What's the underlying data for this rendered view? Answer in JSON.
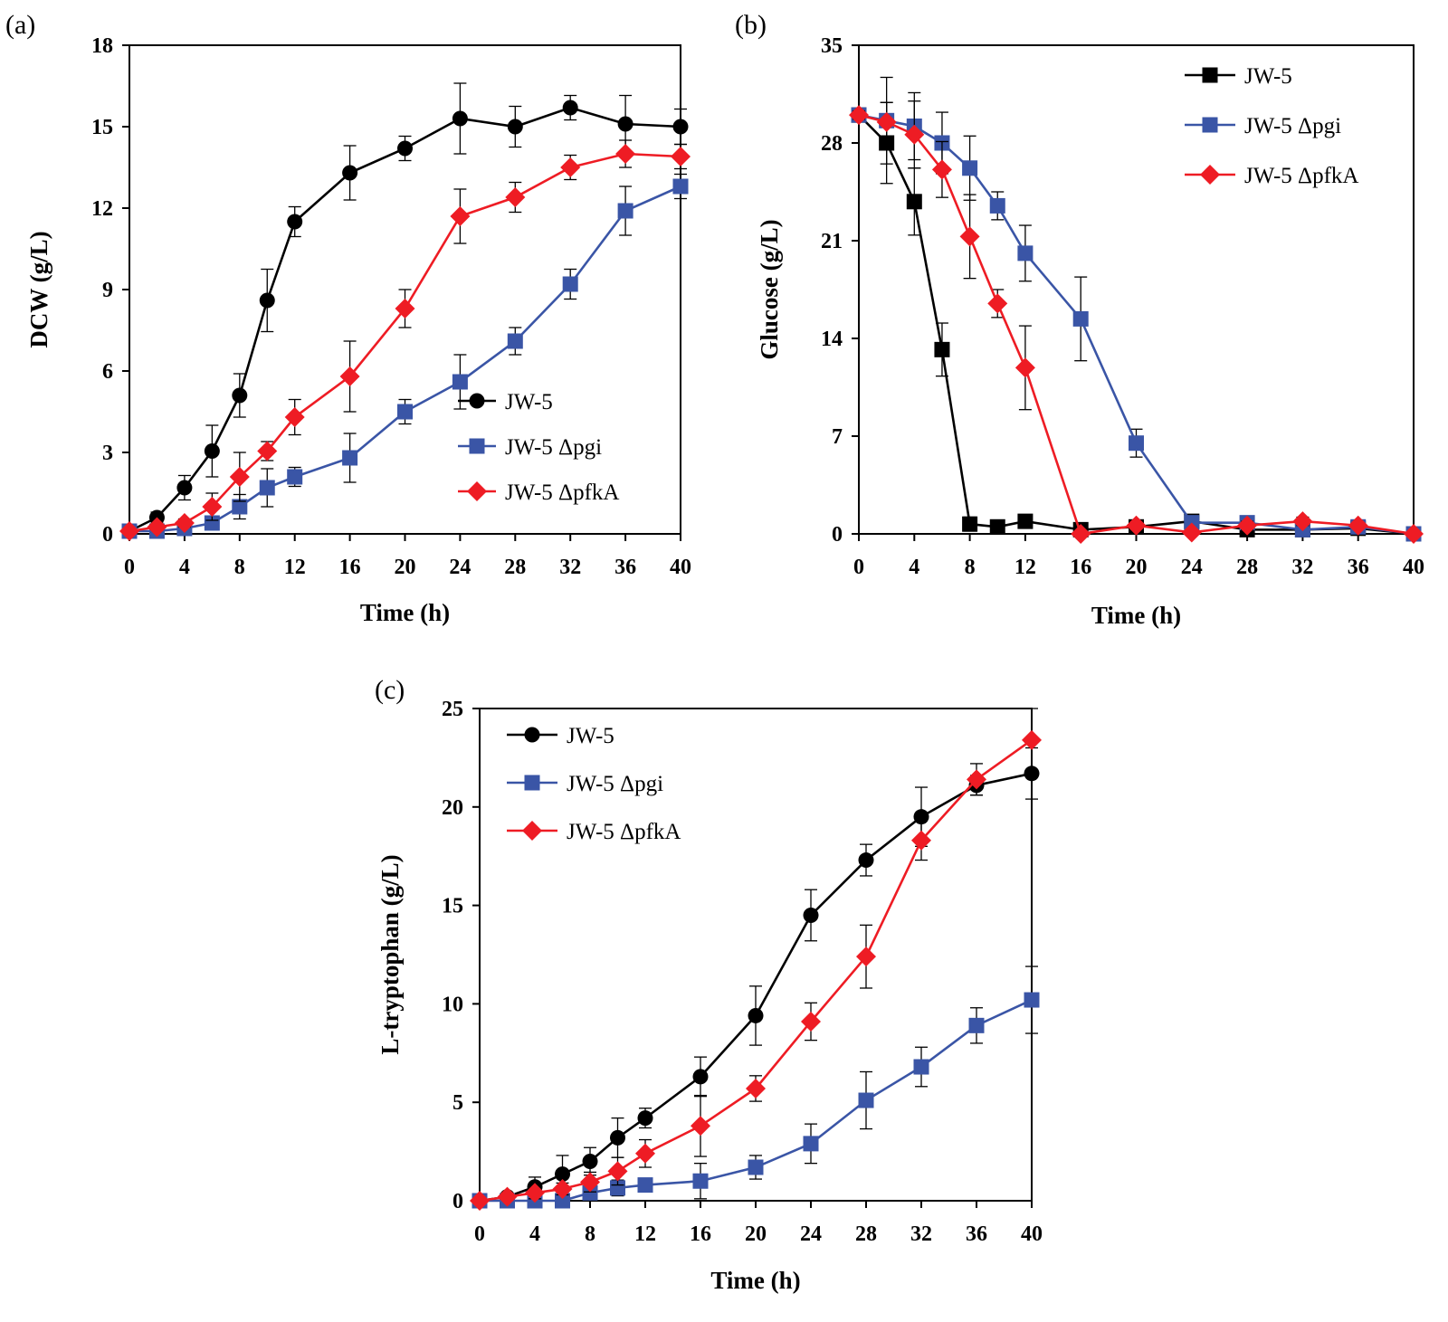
{
  "figure_title": "",
  "chart_data": [
    {
      "id": "a",
      "panel_label": "(a)",
      "type": "line",
      "title": "",
      "xlabel": "Time (h)",
      "ylabel": "DCW (g/L)",
      "xlim": [
        0,
        40
      ],
      "ylim": [
        0,
        18
      ],
      "xticks": [
        0,
        4,
        8,
        12,
        16,
        20,
        24,
        28,
        32,
        36,
        40
      ],
      "yticks": [
        0,
        3,
        6,
        9,
        12,
        15,
        18
      ],
      "legend_position": "lower-right",
      "x": [
        0,
        2,
        4,
        6,
        8,
        10,
        12,
        16,
        20,
        24,
        28,
        32,
        36,
        40
      ],
      "series": [
        {
          "name": "JW-5",
          "color": "#000000",
          "marker": "circle",
          "values": [
            0.1,
            0.6,
            1.7,
            3.05,
            5.1,
            8.6,
            11.5,
            13.3,
            14.2,
            15.3,
            15.0,
            15.7,
            15.1,
            15.0
          ],
          "errors": [
            0.1,
            0.2,
            0.45,
            0.95,
            0.8,
            1.15,
            0.55,
            1.0,
            0.45,
            1.3,
            0.75,
            0.45,
            1.05,
            0.65
          ]
        },
        {
          "name": "JW-5 Δpgi",
          "color": "#3a55a6",
          "marker": "square",
          "values": [
            0.1,
            0.1,
            0.2,
            0.4,
            1.0,
            1.7,
            2.1,
            2.8,
            4.5,
            5.6,
            7.1,
            9.2,
            11.9,
            12.8
          ],
          "errors": [
            0.1,
            0.05,
            0.1,
            0.15,
            0.45,
            0.7,
            0.35,
            0.9,
            0.45,
            1.0,
            0.5,
            0.55,
            0.9,
            0.45
          ]
        },
        {
          "name": "JW-5 ΔpfkA",
          "color": "#ee1c24",
          "marker": "diamond",
          "values": [
            0.1,
            0.25,
            0.4,
            1.0,
            2.1,
            3.05,
            4.3,
            5.8,
            8.3,
            11.7,
            12.4,
            13.5,
            14.0,
            13.9
          ],
          "errors": [
            0.1,
            0.1,
            0.15,
            0.5,
            0.9,
            0.35,
            0.65,
            1.3,
            0.7,
            1.0,
            0.55,
            0.45,
            0.5,
            0.45
          ]
        }
      ]
    },
    {
      "id": "b",
      "panel_label": "(b)",
      "type": "line",
      "title": "",
      "xlabel": "Time (h)",
      "ylabel": "Glucose (g/L)",
      "xlim": [
        0,
        40
      ],
      "ylim": [
        0,
        35
      ],
      "xticks": [
        0,
        4,
        8,
        12,
        16,
        20,
        24,
        28,
        32,
        36,
        40
      ],
      "yticks": [
        0,
        7,
        14,
        21,
        28,
        35
      ],
      "legend_position": "top-right",
      "x": [
        0,
        2,
        4,
        6,
        8,
        10,
        12,
        16,
        20,
        24,
        28,
        32,
        36,
        40
      ],
      "series": [
        {
          "name": "JW-5",
          "color": "#000000",
          "marker": "square",
          "values": [
            30.0,
            28.0,
            23.8,
            13.2,
            0.7,
            0.5,
            0.9,
            0.3,
            0.5,
            0.9,
            0.3,
            0.3,
            0.4,
            0.0
          ],
          "errors": [
            0.3,
            2.9,
            2.4,
            1.9,
            0.5,
            0.3,
            0.3,
            0.2,
            0.3,
            0.3,
            0.2,
            0.2,
            0.2,
            0.1
          ]
        },
        {
          "name": "JW-5 Δpgi",
          "color": "#3a55a6",
          "marker": "square",
          "values": [
            30.0,
            29.6,
            29.2,
            28.0,
            26.2,
            23.5,
            20.1,
            15.4,
            6.5,
            0.8,
            0.8,
            0.3,
            0.5,
            0.0
          ],
          "errors": [
            0.3,
            3.1,
            2.4,
            2.2,
            2.3,
            1.0,
            2.0,
            3.0,
            1.0,
            0.3,
            0.2,
            0.2,
            0.2,
            0.1
          ]
        },
        {
          "name": "JW-5 ΔpfkA",
          "color": "#ee1c24",
          "marker": "diamond",
          "values": [
            30.0,
            29.5,
            28.6,
            26.1,
            21.3,
            16.5,
            11.9,
            0.0,
            0.6,
            0.1,
            0.6,
            0.9,
            0.6,
            0.0
          ],
          "errors": [
            0.3,
            1.4,
            2.4,
            2.0,
            3.0,
            1.0,
            3.0,
            0.1,
            0.3,
            0.1,
            0.3,
            0.3,
            0.2,
            0.1
          ]
        }
      ]
    },
    {
      "id": "c",
      "panel_label": "(c)",
      "type": "line",
      "title": "",
      "xlabel": "Time (h)",
      "ylabel": "L-tryptophan (g/L)",
      "xlim": [
        0,
        40
      ],
      "ylim": [
        0,
        25
      ],
      "xticks": [
        0,
        4,
        8,
        12,
        16,
        20,
        24,
        28,
        32,
        36,
        40
      ],
      "yticks": [
        0,
        5,
        10,
        15,
        20,
        25
      ],
      "legend_position": "top-left",
      "x": [
        0,
        2,
        4,
        6,
        8,
        10,
        12,
        16,
        20,
        24,
        28,
        32,
        36,
        40
      ],
      "series": [
        {
          "name": "JW-5",
          "color": "#000000",
          "marker": "circle",
          "values": [
            0.0,
            0.2,
            0.7,
            1.35,
            2.0,
            3.2,
            4.2,
            6.3,
            9.4,
            14.5,
            17.3,
            19.5,
            21.1,
            21.7
          ],
          "errors": [
            0.1,
            0.1,
            0.5,
            0.95,
            0.7,
            1.0,
            0.5,
            1.0,
            1.5,
            1.3,
            0.8,
            1.5,
            0.5,
            1.3
          ]
        },
        {
          "name": "JW-5 Δpgi",
          "color": "#3a55a6",
          "marker": "square",
          "values": [
            0.0,
            0.0,
            0.0,
            0.0,
            0.4,
            0.65,
            0.8,
            1.0,
            1.7,
            2.9,
            5.1,
            6.8,
            8.9,
            10.2
          ],
          "errors": [
            0.1,
            0.1,
            0.1,
            0.1,
            0.3,
            0.4,
            0.3,
            0.9,
            0.6,
            1.0,
            1.45,
            1.0,
            0.9,
            1.7
          ]
        },
        {
          "name": "JW-5 ΔpfkA",
          "color": "#ee1c24",
          "marker": "diamond",
          "values": [
            0.0,
            0.2,
            0.4,
            0.6,
            0.95,
            1.5,
            2.4,
            3.8,
            5.7,
            9.1,
            12.4,
            18.3,
            21.4,
            23.4
          ],
          "errors": [
            0.1,
            0.1,
            0.3,
            0.3,
            0.5,
            0.7,
            0.7,
            1.55,
            0.65,
            0.95,
            1.6,
            1.0,
            0.8,
            1.6
          ]
        }
      ]
    }
  ]
}
